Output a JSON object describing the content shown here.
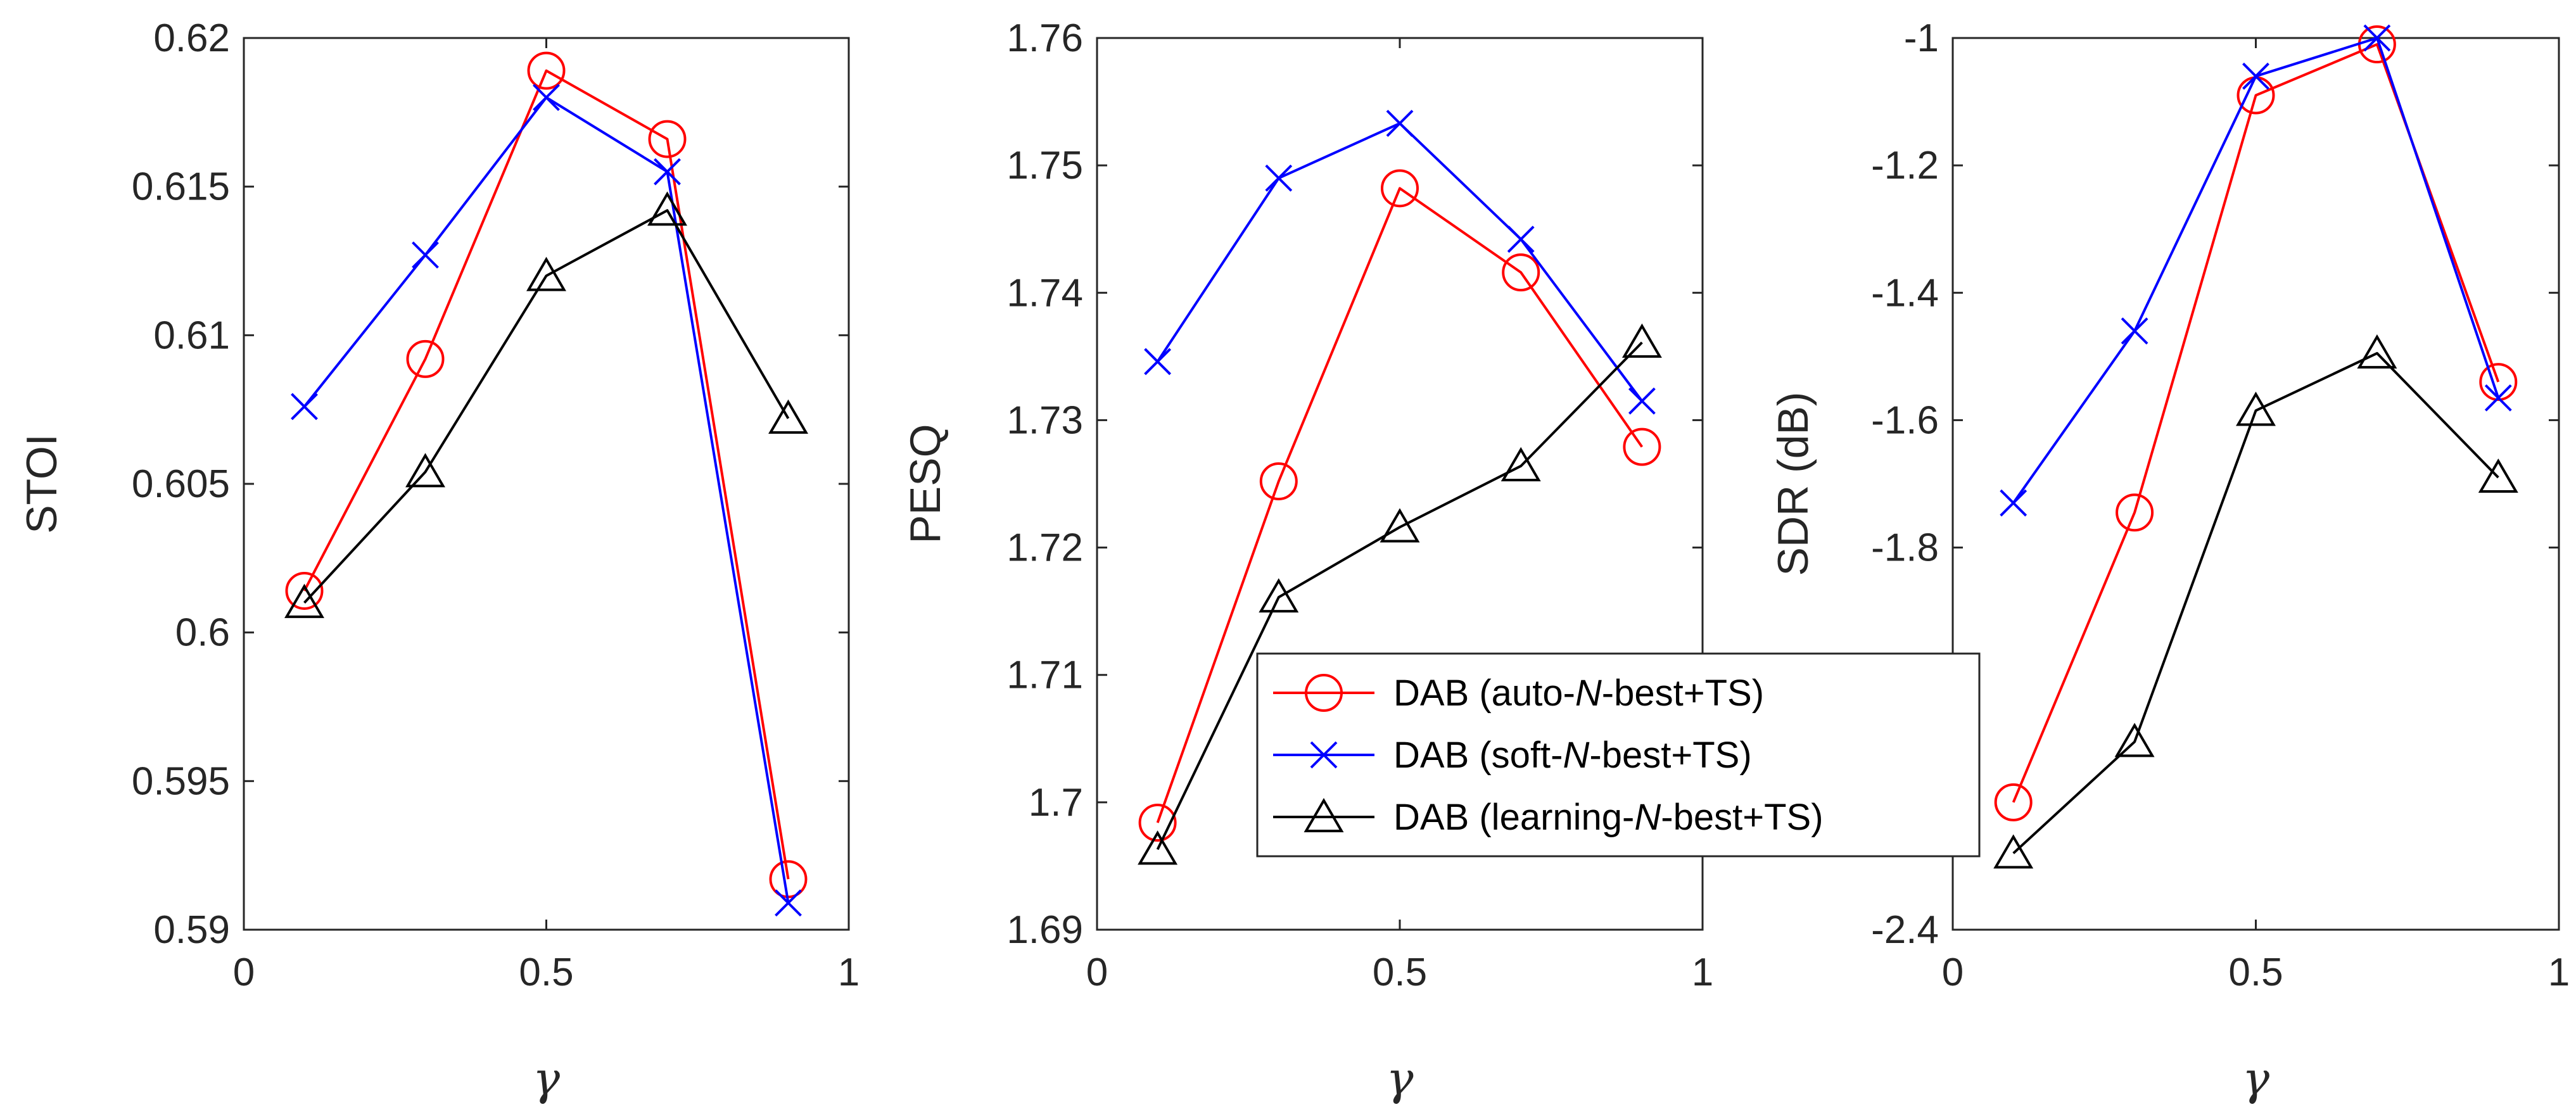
{
  "chart_data": [
    {
      "type": "line",
      "xlabel": "γ",
      "ylabel": "STOI",
      "xlim": [
        0,
        1
      ],
      "ylim": [
        0.59,
        0.62
      ],
      "xticks": [
        0,
        0.5,
        1
      ],
      "xtick_labels": [
        "0",
        "0.5",
        "1"
      ],
      "yticks": [
        0.59,
        0.595,
        0.6,
        0.605,
        0.61,
        0.615,
        0.62
      ],
      "ytick_labels": [
        "0.59",
        "0.595",
        "0.6",
        "0.605",
        "0.61",
        "0.615",
        "0.62"
      ],
      "x": [
        0.1,
        0.3,
        0.5,
        0.7,
        0.9
      ],
      "series": [
        {
          "name": "DAB (auto-N-best+TS)",
          "values": [
            0.6014,
            0.6092,
            0.6189,
            0.6166,
            0.5917
          ]
        },
        {
          "name": "DAB (soft-N-best+TS)",
          "values": [
            0.6076,
            0.6127,
            0.618,
            0.6155,
            0.5909
          ]
        },
        {
          "name": "DAB (learning-N-best+TS)",
          "values": [
            0.601,
            0.6054,
            0.612,
            0.6142,
            0.6072
          ]
        }
      ]
    },
    {
      "type": "line",
      "xlabel": "γ",
      "ylabel": "PESQ",
      "xlim": [
        0,
        1
      ],
      "ylim": [
        1.69,
        1.76
      ],
      "xticks": [
        0,
        0.5,
        1
      ],
      "xtick_labels": [
        "0",
        "0.5",
        "1"
      ],
      "yticks": [
        1.69,
        1.7,
        1.71,
        1.72,
        1.73,
        1.74,
        1.75,
        1.76
      ],
      "ytick_labels": [
        "1.69",
        "1.7",
        "1.71",
        "1.72",
        "1.73",
        "1.74",
        "1.75",
        "1.76"
      ],
      "x": [
        0.1,
        0.3,
        0.5,
        0.7,
        0.9
      ],
      "series": [
        {
          "name": "DAB (auto-N-best+TS)",
          "values": [
            1.6984,
            1.7252,
            1.7482,
            1.7416,
            1.7279
          ]
        },
        {
          "name": "DAB (soft-N-best+TS)",
          "values": [
            1.7346,
            1.749,
            1.7533,
            1.7442,
            1.7315
          ]
        },
        {
          "name": "DAB (learning-N-best+TS)",
          "values": [
            1.6963,
            1.7161,
            1.7216,
            1.7264,
            1.7361
          ]
        }
      ]
    },
    {
      "type": "line",
      "xlabel": "γ",
      "ylabel": "SDR (dB)",
      "xlim": [
        0,
        1
      ],
      "ylim": [
        -2.4,
        -1.0
      ],
      "xticks": [
        0,
        0.5,
        1
      ],
      "xtick_labels": [
        "0",
        "0.5",
        "1"
      ],
      "yticks": [
        -2.4,
        -1.8,
        -1.6,
        -1.4,
        -1.2,
        -1.0
      ],
      "ytick_labels": [
        "-2.4",
        "-1.8",
        "-1.6",
        "-1.4",
        "-1.2",
        "-1"
      ],
      "x": [
        0.1,
        0.3,
        0.5,
        0.7,
        0.9
      ],
      "series": [
        {
          "name": "DAB (auto-N-best+TS)",
          "values": [
            -2.2,
            -1.745,
            -1.09,
            -1.01,
            -1.54
          ]
        },
        {
          "name": "DAB (soft-N-best+TS)",
          "values": [
            -1.73,
            -1.46,
            -1.06,
            -1.0,
            -1.565
          ]
        },
        {
          "name": "DAB (learning-N-best+TS)",
          "values": [
            -2.28,
            -2.105,
            -1.585,
            -1.495,
            -1.69
          ]
        }
      ]
    }
  ],
  "legend": {
    "placement": "center",
    "entries": [
      {
        "prefix": "DAB (auto-",
        "italic": "N",
        "suffix": "-best+TS)",
        "marker": "circle",
        "color": "#ff0000"
      },
      {
        "prefix": "DAB (soft-",
        "italic": "N",
        "suffix": "-best+TS)",
        "marker": "x",
        "color": "#0000ff"
      },
      {
        "prefix": "DAB (learning-",
        "italic": "N",
        "suffix": "-best+TS)",
        "marker": "triangle",
        "color": "#000000"
      }
    ]
  },
  "colors": {
    "series": [
      "#ff0000",
      "#0000ff",
      "#000000"
    ],
    "axis": "#262626"
  },
  "markers": [
    "circle",
    "x",
    "triangle"
  ]
}
